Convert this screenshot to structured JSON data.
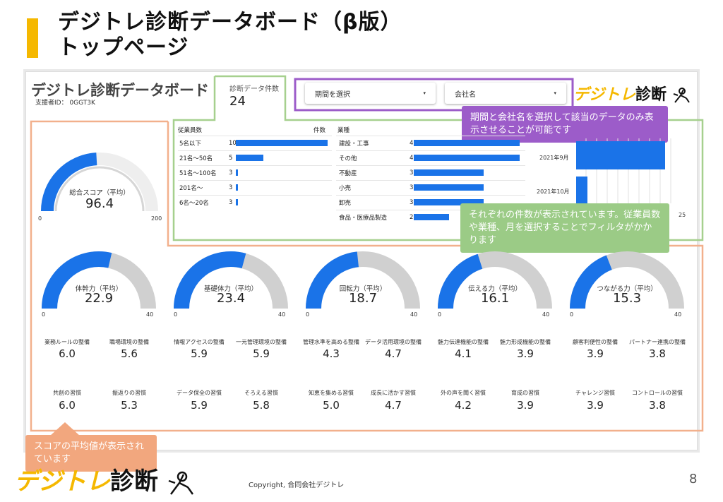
{
  "slide": {
    "title_line1": "デジトレ診断データボード（β版）",
    "title_line2": "トップページ",
    "page_number": "8",
    "copyright": "Copyright, 合同会社デジトレ"
  },
  "dashboard": {
    "title": "デジトレ診断データボード",
    "supporter_id": "支援者ID： 0GGT3K",
    "count_label": "診断データ件数",
    "count_value": "24",
    "period_select": "期間を選択",
    "company_select": "会社名",
    "logo_y": "デジトレ",
    "logo_b": "診断"
  },
  "callouts": {
    "filter": "期間と会社名を選択して該当のデータのみ表示させることが可能です",
    "counts": "それぞれの件数が表示されています。従業員数や業種、月を選択することでフィルタがかかります",
    "scores": "スコアの平均値が表示されています"
  },
  "employees_table": {
    "header_left": "従業員数",
    "header_right": "件数",
    "rows": [
      {
        "label": "5名以下",
        "value": "10",
        "frac": 1.0
      },
      {
        "label": "21名〜50名",
        "value": "5",
        "frac": 0.3
      },
      {
        "label": "51名〜100名",
        "value": "3",
        "frac": 0.02
      },
      {
        "label": "201名〜",
        "value": "3",
        "frac": 0.02
      },
      {
        "label": "6名〜20名",
        "value": "3",
        "frac": 0.02
      }
    ]
  },
  "industry_table": {
    "header": "業種",
    "rows": [
      {
        "label": "建設・工事",
        "value": "4",
        "frac": 1.0
      },
      {
        "label": "その他",
        "value": "4",
        "frac": 1.0
      },
      {
        "label": "不動産",
        "value": "3",
        "frac": 0.66
      },
      {
        "label": "小売",
        "value": "3",
        "frac": 0.66
      },
      {
        "label": "卸売",
        "value": "3",
        "frac": 0.66
      },
      {
        "label": "食品・医療品製造",
        "value": "2",
        "frac": 0.33
      }
    ]
  },
  "month_chart": {
    "months": [
      "2021年9月",
      "2021年10月"
    ],
    "tick_max": "25"
  },
  "total_score": {
    "label": "総合スコア（平均）",
    "value": "96.4",
    "min": "0",
    "max": "200",
    "fraction": 0.482
  },
  "categories": [
    {
      "label": "体幹力（平均）",
      "value": "22.9",
      "min": "0",
      "max": "40",
      "fraction": 0.5725,
      "items": [
        {
          "l": "業務ルールの整備",
          "v": "6.0"
        },
        {
          "l": "職場環境の整備",
          "v": "5.6"
        },
        {
          "l": "共創の習慣",
          "v": "6.0"
        },
        {
          "l": "振返りの習慣",
          "v": "5.3"
        }
      ]
    },
    {
      "label": "基礎体力（平均）",
      "value": "23.4",
      "min": "0",
      "max": "40",
      "fraction": 0.585,
      "items": [
        {
          "l": "情報アクセスの整備",
          "v": "5.9"
        },
        {
          "l": "一元管理環境の整備",
          "v": "5.9"
        },
        {
          "l": "データ保全の習慣",
          "v": "5.9"
        },
        {
          "l": "そろえる習慣",
          "v": "5.8"
        }
      ]
    },
    {
      "label": "回転力（平均）",
      "value": "18.7",
      "min": "0",
      "max": "40",
      "fraction": 0.4675,
      "items": [
        {
          "l": "管理水準を高める整備",
          "v": "4.3"
        },
        {
          "l": "データ活用環境の整備",
          "v": "4.7"
        },
        {
          "l": "知恵を集める習慣",
          "v": "5.0"
        },
        {
          "l": "成長に活かす習慣",
          "v": "4.7"
        }
      ]
    },
    {
      "label": "伝える力（平均）",
      "value": "16.1",
      "min": "0",
      "max": "40",
      "fraction": 0.4025,
      "items": [
        {
          "l": "魅力伝達機能の整備",
          "v": "4.1"
        },
        {
          "l": "魅力形成機能の整備",
          "v": "3.9"
        },
        {
          "l": "外の声を聞く習慣",
          "v": "4.2"
        },
        {
          "l": "育成の習慣",
          "v": "3.9"
        }
      ]
    },
    {
      "label": "つながる力（平均）",
      "value": "15.3",
      "min": "0",
      "max": "40",
      "fraction": 0.3825,
      "items": [
        {
          "l": "顧客利便性の整備",
          "v": "3.9"
        },
        {
          "l": "パートナー連携の整備",
          "v": "3.8"
        },
        {
          "l": "チャレンジ習慣",
          "v": "3.9"
        },
        {
          "l": "コントロールの習慣",
          "v": "3.8"
        }
      ]
    }
  ],
  "colors": {
    "accent_yellow": "#f5b800",
    "bar_blue": "#1a73e8",
    "gauge_track": "#d0d0d0",
    "callout_purple": "#9c5cc9",
    "callout_green": "#9bcb86",
    "callout_orange": "#f2a77e"
  }
}
